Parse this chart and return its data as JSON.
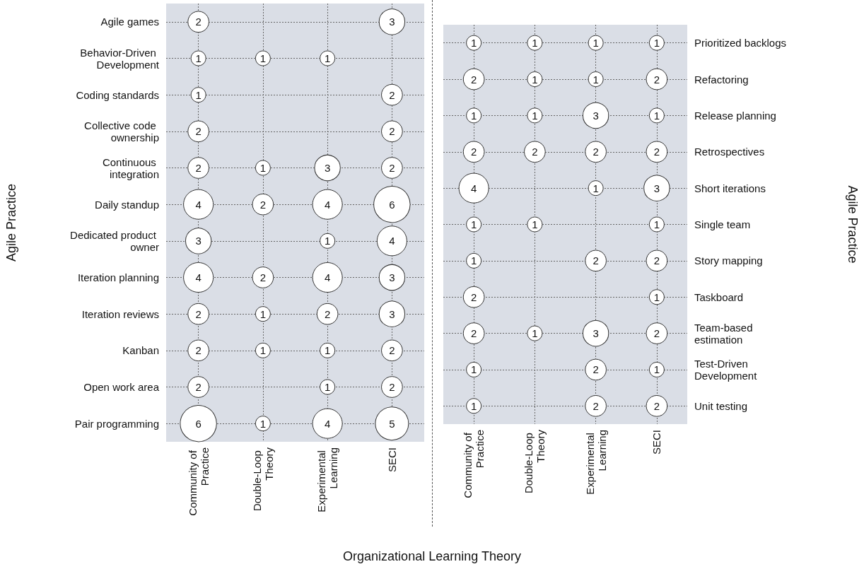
{
  "chart_data": [
    {
      "type": "heatmap",
      "xlabel": "Organizational Learning Theory",
      "ylabel": "Agile Practice",
      "grid": true,
      "data_labels": true,
      "marker": "circle",
      "categories": [
        "Community of Practice",
        "Double-Loop Theory",
        "Experimental Learning",
        "SECI"
      ],
      "y_categories": [
        "Agile games",
        "Behavior-Driven Development",
        "Coding standards",
        "Collective code ownership",
        "Continuous integration",
        "Daily standup",
        "Dedicated product owner",
        "Iteration planning",
        "Iteration reviews",
        "Kanban",
        "Open work area",
        "Pair programming"
      ],
      "cells": [
        [
          2,
          null,
          null,
          3
        ],
        [
          1,
          1,
          1,
          null
        ],
        [
          1,
          null,
          null,
          2
        ],
        [
          2,
          null,
          null,
          2
        ],
        [
          2,
          1,
          3,
          2
        ],
        [
          4,
          2,
          4,
          6
        ],
        [
          3,
          null,
          1,
          4
        ],
        [
          4,
          2,
          4,
          3
        ],
        [
          2,
          1,
          2,
          3
        ],
        [
          2,
          1,
          1,
          2
        ],
        [
          2,
          null,
          1,
          2
        ],
        [
          6,
          1,
          4,
          5
        ]
      ]
    },
    {
      "type": "heatmap",
      "ylabel": "Agile Practice",
      "grid": true,
      "data_labels": true,
      "marker": "circle",
      "categories": [
        "Community of Practice",
        "Double-Loop Theory",
        "Experimental Learning",
        "SECI"
      ],
      "y_categories": [
        "Prioritized backlogs",
        "Refactoring",
        "Release planning",
        "Retrospectives",
        "Short iterations",
        "Single team",
        "Story mapping",
        "Taskboard",
        "Team-based estimation",
        "Test-Driven Development",
        "Unit testing"
      ],
      "cells": [
        [
          1,
          1,
          1,
          1
        ],
        [
          2,
          1,
          1,
          2
        ],
        [
          1,
          1,
          3,
          1
        ],
        [
          2,
          2,
          2,
          2
        ],
        [
          4,
          null,
          1,
          3
        ],
        [
          1,
          1,
          null,
          1
        ],
        [
          1,
          null,
          2,
          2
        ],
        [
          2,
          null,
          null,
          1
        ],
        [
          2,
          1,
          3,
          2
        ],
        [
          1,
          null,
          2,
          1
        ],
        [
          1,
          null,
          2,
          2
        ]
      ]
    }
  ]
}
